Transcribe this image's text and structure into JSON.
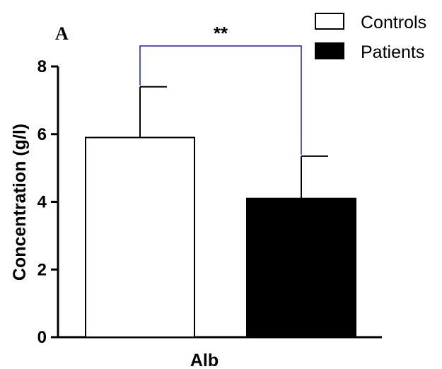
{
  "panel_label": "A",
  "chart_data": {
    "type": "bar",
    "categories": [
      "Alb"
    ],
    "xlabel": "Alb",
    "ylabel": "Concentration (g/l)",
    "ylim": [
      0,
      8
    ],
    "yticks": [
      0,
      2,
      4,
      6,
      8
    ],
    "grid": false,
    "legend_position": "top-right",
    "series": [
      {
        "name": "Controls",
        "values": [
          5.9
        ],
        "error": [
          1.5
        ],
        "fill": "#ffffff",
        "stroke": "#000000"
      },
      {
        "name": "Patients",
        "values": [
          4.1
        ],
        "error": [
          1.25
        ],
        "fill": "#000000",
        "stroke": "#000000"
      }
    ],
    "annotation": {
      "text": "**",
      "between": [
        "Controls",
        "Patients"
      ],
      "line_color": "#1a1acc"
    }
  }
}
